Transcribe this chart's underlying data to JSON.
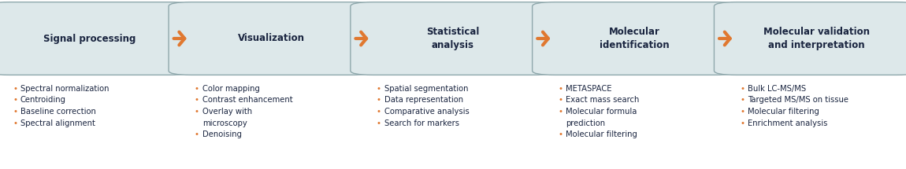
{
  "background_color": "#ffffff",
  "box_fill_color": "#dde8ea",
  "box_edge_color": "#8fa8ac",
  "arrow_color": "#e07830",
  "text_color": "#1a2540",
  "bullet_color": "#e07830",
  "steps": [
    {
      "title": "Signal processing",
      "bullets": [
        "Spectral normalization",
        "Centroiding",
        "Baseline correction",
        "Spectral alignment"
      ]
    },
    {
      "title": "Visualization",
      "bullets": [
        "Color mapping",
        "Contrast enhancement",
        "Overlay with\nmicroscopy",
        "Denoising"
      ]
    },
    {
      "title": "Statistical\nanalysis",
      "bullets": [
        "Spatial segmentation",
        "Data representation",
        "Comparative analysis",
        "Search for markers"
      ]
    },
    {
      "title": "Molecular\nidentification",
      "bullets": [
        "METASPACE",
        "Exact mass search",
        "Molecular formula\nprediction",
        "Molecular filtering"
      ]
    },
    {
      "title": "Molecular validation\nand interpretation",
      "bullets": [
        "Bulk LC-MS/MS",
        "Targeted MS/MS on tissue",
        "Molecular filtering",
        "Enrichment analysis"
      ]
    }
  ],
  "figsize": [
    11.5,
    2.15
  ],
  "dpi": 100
}
